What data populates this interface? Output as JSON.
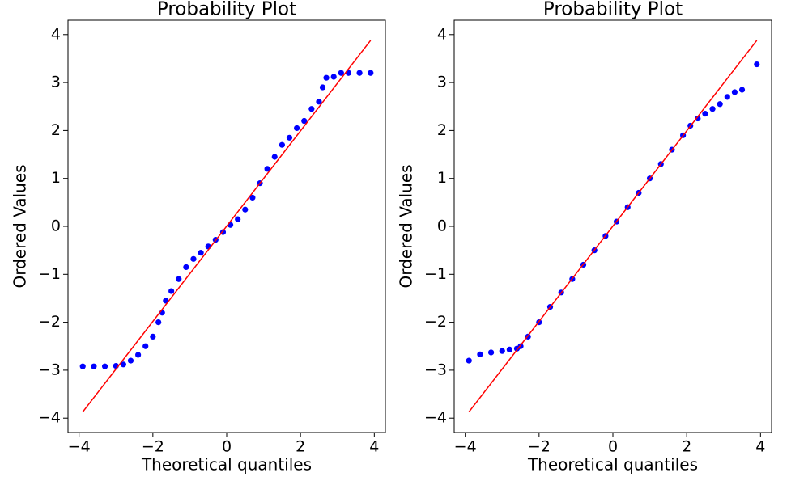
{
  "chart_data": [
    {
      "type": "scatter",
      "title": "Probability Plot",
      "x_label": "Theoretical quantiles",
      "y_label": "Ordered Values",
      "xlim": [
        -4.3,
        4.3
      ],
      "ylim": [
        -4.3,
        4.3
      ],
      "xticks": [
        {
          "value": -4,
          "label": "−4"
        },
        {
          "value": -2,
          "label": "−2"
        },
        0,
        2,
        4
      ],
      "yticks": [
        {
          "value": -4,
          "label": "−4"
        },
        {
          "value": -3,
          "label": "−3"
        },
        {
          "value": -2,
          "label": "−2"
        },
        {
          "value": -1,
          "label": "−1"
        },
        0,
        1,
        2,
        3,
        4
      ],
      "color": "#0000ff",
      "x": [
        -3.9,
        -3.6,
        -3.3,
        -3.0,
        -2.8,
        -2.6,
        -2.4,
        -2.2,
        -2.0,
        -1.85,
        -1.75,
        -1.65,
        -1.5,
        -1.3,
        -1.1,
        -0.9,
        -0.7,
        -0.5,
        -0.3,
        -0.1,
        0.1,
        0.3,
        0.5,
        0.7,
        0.9,
        1.1,
        1.3,
        1.5,
        1.7,
        1.9,
        2.1,
        2.3,
        2.5,
        2.6,
        2.7,
        2.9,
        3.1,
        3.3,
        3.6,
        3.9
      ],
      "values": [
        -2.92,
        -2.92,
        -2.92,
        -2.91,
        -2.88,
        -2.8,
        -2.68,
        -2.5,
        -2.3,
        -2.0,
        -1.8,
        -1.55,
        -1.35,
        -1.1,
        -0.85,
        -0.68,
        -0.55,
        -0.42,
        -0.28,
        -0.12,
        0.03,
        0.15,
        0.35,
        0.6,
        0.9,
        1.2,
        1.45,
        1.7,
        1.85,
        2.05,
        2.2,
        2.45,
        2.6,
        2.9,
        3.1,
        3.12,
        3.2,
        3.2,
        3.2,
        3.2
      ],
      "fit_line": {
        "color": "#ff0000",
        "x": [
          -3.9,
          3.9
        ],
        "values": [
          -3.87,
          3.88
        ]
      }
    },
    {
      "type": "scatter",
      "title": "Probability Plot",
      "x_label": "Theoretical quantiles",
      "y_label": "Ordered Values",
      "xlim": [
        -4.3,
        4.3
      ],
      "ylim": [
        -4.3,
        4.3
      ],
      "xticks": [
        {
          "value": -4,
          "label": "−4"
        },
        {
          "value": -2,
          "label": "−2"
        },
        0,
        2,
        4
      ],
      "yticks": [
        {
          "value": -4,
          "label": "−4"
        },
        {
          "value": -3,
          "label": "−3"
        },
        {
          "value": -2,
          "label": "−2"
        },
        {
          "value": -1,
          "label": "−1"
        },
        0,
        1,
        2,
        3,
        4
      ],
      "color": "#0000ff",
      "x": [
        -3.9,
        -3.6,
        -3.3,
        -3.0,
        -2.8,
        -2.6,
        -2.5,
        -2.3,
        -2.0,
        -1.7,
        -1.4,
        -1.1,
        -0.8,
        -0.5,
        -0.2,
        0.1,
        0.4,
        0.7,
        1.0,
        1.3,
        1.6,
        1.9,
        2.1,
        2.3,
        2.5,
        2.7,
        2.9,
        3.1,
        3.3,
        3.5,
        3.9
      ],
      "values": [
        -2.8,
        -2.67,
        -2.63,
        -2.6,
        -2.57,
        -2.55,
        -2.5,
        -2.3,
        -2.0,
        -1.68,
        -1.38,
        -1.1,
        -0.8,
        -0.5,
        -0.2,
        0.1,
        0.4,
        0.7,
        1.0,
        1.3,
        1.6,
        1.9,
        2.1,
        2.25,
        2.35,
        2.45,
        2.55,
        2.7,
        2.8,
        2.85,
        3.38
      ],
      "fit_line": {
        "color": "#ff0000",
        "x": [
          -3.9,
          3.9
        ],
        "values": [
          -3.87,
          3.88
        ]
      }
    }
  ]
}
